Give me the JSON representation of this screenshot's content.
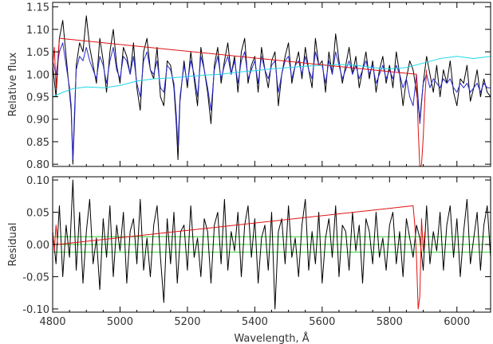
{
  "chart_data": [
    {
      "type": "line",
      "panel": "top",
      "xlabel": "",
      "ylabel": "Relative flux",
      "xlim": [
        4800,
        6100
      ],
      "ylim": [
        0.795,
        1.16
      ],
      "yticks": [
        "0.80",
        "0.85",
        "0.90",
        "0.95",
        "1.00",
        "1.05",
        "1.10",
        "1.15"
      ],
      "ytick_values": [
        0.8,
        0.85,
        0.9,
        0.95,
        1.0,
        1.05,
        1.1,
        1.15
      ],
      "xticks": [
        "4800",
        "5000",
        "5200",
        "5400",
        "5600",
        "5800",
        "6000"
      ],
      "xtick_values": [
        4800,
        5000,
        5200,
        5400,
        5600,
        5800,
        6000
      ],
      "show_xtick_labels": false,
      "series": [
        {
          "color": "#000000",
          "x": [
            4800,
            4810,
            4820,
            4830,
            4840,
            4850,
            4855,
            4860,
            4865,
            4870,
            4880,
            4890,
            4900,
            4910,
            4920,
            4930,
            4940,
            4950,
            4960,
            4970,
            4980,
            4990,
            5000,
            5010,
            5020,
            5030,
            5040,
            5050,
            5060,
            5070,
            5080,
            5090,
            5100,
            5110,
            5120,
            5130,
            5140,
            5150,
            5160,
            5167,
            5172,
            5178,
            5190,
            5200,
            5210,
            5220,
            5230,
            5240,
            5250,
            5260,
            5270,
            5280,
            5290,
            5300,
            5310,
            5320,
            5330,
            5340,
            5350,
            5360,
            5370,
            5380,
            5390,
            5400,
            5410,
            5420,
            5430,
            5440,
            5450,
            5460,
            5470,
            5480,
            5490,
            5500,
            5510,
            5520,
            5530,
            5540,
            5550,
            5560,
            5570,
            5580,
            5590,
            5600,
            5610,
            5620,
            5630,
            5640,
            5650,
            5660,
            5670,
            5680,
            5690,
            5700,
            5710,
            5720,
            5730,
            5740,
            5750,
            5760,
            5770,
            5780,
            5790,
            5800,
            5810,
            5820,
            5830,
            5840,
            5850,
            5860,
            5870,
            5880,
            5890,
            5900,
            5910,
            5920,
            5930,
            5940,
            5950,
            5960,
            5970,
            5980,
            5990,
            6000,
            6010,
            6020,
            6030,
            6040,
            6050,
            6060,
            6070,
            6080,
            6090,
            6100
          ],
          "y": [
            1.02,
            0.95,
            1.08,
            1.12,
            1.04,
            0.96,
            0.92,
            0.8,
            0.9,
            1.02,
            1.07,
            1.05,
            1.13,
            1.06,
            1.02,
            0.98,
            1.08,
            1.03,
            0.96,
            1.05,
            1.1,
            1.02,
            0.98,
            1.06,
            1.04,
            1.0,
            1.07,
            0.97,
            0.92,
            1.05,
            1.08,
            1.01,
            0.99,
            1.06,
            0.95,
            0.93,
            1.03,
            1.02,
            0.97,
            0.89,
            0.81,
            0.94,
            1.03,
            0.97,
            1.05,
            0.99,
            0.93,
            1.06,
            1.01,
            0.96,
            0.89,
            1.02,
            1.06,
            0.98,
            1.03,
            1.07,
            1.0,
            1.04,
            0.96,
            1.05,
            1.08,
            0.98,
            1.02,
            1.04,
            0.96,
            1.06,
            1.01,
            0.97,
            1.03,
            1.05,
            0.93,
            1.0,
            1.04,
            1.07,
            0.98,
            1.02,
            1.05,
            0.99,
            1.06,
            1.01,
            0.97,
            1.08,
            1.02,
            1.03,
            0.96,
            1.05,
            1.0,
            1.09,
            1.03,
            0.98,
            1.02,
            1.06,
            1.0,
            1.04,
            0.97,
            1.01,
            1.05,
            0.99,
            1.03,
            0.96,
            1.01,
            1.04,
            0.98,
            1.02,
            0.97,
            1.05,
            1.0,
            0.93,
            0.99,
            1.03,
            1.01,
            0.96,
            0.9,
            0.98,
            1.04,
            1.0,
            0.96,
            1.02,
            0.95,
            1.01,
            0.98,
            1.03,
            0.96,
            0.93,
            0.99,
            0.98,
            1.02,
            0.94,
            0.97,
            1.01,
            0.95,
            0.99,
            0.96,
            0.95
          ]
        },
        {
          "color": "#2a2ad0",
          "x": [
            4800,
            4810,
            4820,
            4830,
            4840,
            4850,
            4855,
            4860,
            4865,
            4870,
            4880,
            4890,
            4900,
            4910,
            4920,
            4930,
            4940,
            4950,
            4960,
            4970,
            4980,
            4990,
            5000,
            5010,
            5020,
            5030,
            5040,
            5050,
            5060,
            5070,
            5080,
            5090,
            5100,
            5110,
            5120,
            5130,
            5140,
            5150,
            5160,
            5167,
            5172,
            5178,
            5190,
            5200,
            5210,
            5220,
            5230,
            5240,
            5250,
            5260,
            5270,
            5280,
            5290,
            5300,
            5310,
            5320,
            5330,
            5340,
            5350,
            5360,
            5370,
            5380,
            5390,
            5400,
            5410,
            5420,
            5430,
            5440,
            5450,
            5460,
            5470,
            5480,
            5490,
            5500,
            5510,
            5520,
            5530,
            5540,
            5550,
            5560,
            5570,
            5580,
            5590,
            5600,
            5610,
            5620,
            5630,
            5640,
            5650,
            5660,
            5670,
            5680,
            5690,
            5700,
            5710,
            5720,
            5730,
            5740,
            5750,
            5760,
            5770,
            5780,
            5790,
            5800,
            5810,
            5820,
            5830,
            5840,
            5850,
            5860,
            5870,
            5880,
            5890,
            5900,
            5910,
            5920,
            5930,
            5940,
            5950,
            5960,
            5970,
            5980,
            5990,
            6000,
            6010,
            6020,
            6030,
            6040,
            6050,
            6060,
            6070,
            6080,
            6090,
            6100
          ],
          "y": [
            1.03,
            1.0,
            1.05,
            1.07,
            1.02,
            0.97,
            0.93,
            0.81,
            0.92,
            1.01,
            1.04,
            1.03,
            1.06,
            1.03,
            1.01,
            0.99,
            1.04,
            1.02,
            0.98,
            1.03,
            1.06,
            1.01,
            0.99,
            1.04,
            1.03,
            1.0,
            1.04,
            0.98,
            0.95,
            1.03,
            1.05,
            1.01,
            1.0,
            1.03,
            0.97,
            0.96,
            1.02,
            1.01,
            0.98,
            0.91,
            0.84,
            0.95,
            1.02,
            0.98,
            1.03,
            1.0,
            0.95,
            1.04,
            1.01,
            0.97,
            0.92,
            1.01,
            1.04,
            0.99,
            1.02,
            1.04,
            1.0,
            1.03,
            0.98,
            1.03,
            1.05,
            0.99,
            1.01,
            1.03,
            0.98,
            1.04,
            1.01,
            0.99,
            1.02,
            1.03,
            0.96,
            1.0,
            1.03,
            1.04,
            0.99,
            1.02,
            1.03,
            1.0,
            1.04,
            1.01,
            0.99,
            1.05,
            1.02,
            1.02,
            0.98,
            1.03,
            1.0,
            1.05,
            1.02,
            0.99,
            1.01,
            1.03,
            1.0,
            1.02,
            0.99,
            1.01,
            1.03,
            1.0,
            1.02,
            0.98,
            1.0,
            1.02,
            0.99,
            1.01,
            0.99,
            1.02,
            1.0,
            0.97,
            0.99,
            0.95,
            0.93,
            1.0,
            0.89,
            0.98,
            1.0,
            0.97,
            0.99,
            0.98,
            0.97,
            0.99,
            0.98,
            0.99,
            0.97,
            0.96,
            0.98,
            0.97,
            0.98,
            0.96,
            0.97,
            0.98,
            0.96,
            0.98,
            0.97,
            0.97
          ]
        },
        {
          "color": "#20d8e8",
          "x": [
            4800,
            4830,
            4860,
            4900,
            4950,
            5000,
            5050,
            5100,
            5150,
            5200,
            5250,
            5300,
            5350,
            5400,
            5450,
            5500,
            5550,
            5600,
            5650,
            5700,
            5750,
            5800,
            5850,
            5900,
            5950,
            6000,
            6050,
            6100
          ],
          "y": [
            0.95,
            0.96,
            0.968,
            0.972,
            0.97,
            0.975,
            0.985,
            0.99,
            0.992,
            0.995,
            0.998,
            1.0,
            1.005,
            1.008,
            1.012,
            1.015,
            1.018,
            1.02,
            1.022,
            1.02,
            1.015,
            1.012,
            1.015,
            1.025,
            1.035,
            1.04,
            1.035,
            1.04
          ]
        },
        {
          "color": "#e01010",
          "x": [
            4800,
            4805,
            4810,
            4815,
            4820,
            5880,
            5885,
            5890,
            5895,
            5900,
            5905,
            5910
          ],
          "y": [
            1.02,
            1.06,
            0.97,
            1.03,
            1.08,
            1.0,
            0.88,
            0.79,
            0.8,
            0.86,
            0.95,
            1.01
          ]
        }
      ]
    },
    {
      "type": "line",
      "panel": "bottom",
      "xlabel": "Wavelength, Å",
      "ylabel": "Residual",
      "xlim": [
        4800,
        6100
      ],
      "ylim": [
        -0.105,
        0.105
      ],
      "yticks": [
        "-0.10",
        "-0.05",
        "0.00",
        "0.05",
        "0.10"
      ],
      "ytick_values": [
        -0.1,
        -0.05,
        0.0,
        0.05,
        0.1
      ],
      "xticks": [
        "4800",
        "5000",
        "5200",
        "5400",
        "5600",
        "5800",
        "6000"
      ],
      "xtick_values": [
        4800,
        5000,
        5200,
        5400,
        5600,
        5800,
        6000
      ],
      "show_xtick_labels": true,
      "reference_lines": {
        "color": "#30d030",
        "y": [
          0.012,
          0.0,
          -0.012
        ]
      },
      "series": [
        {
          "color": "#000000",
          "x": [
            4800,
            4810,
            4820,
            4830,
            4840,
            4850,
            4860,
            4870,
            4880,
            4890,
            4900,
            4910,
            4920,
            4930,
            4940,
            4950,
            4960,
            4970,
            4980,
            4990,
            5000,
            5010,
            5020,
            5030,
            5040,
            5050,
            5060,
            5070,
            5080,
            5090,
            5100,
            5110,
            5120,
            5130,
            5140,
            5150,
            5160,
            5170,
            5180,
            5190,
            5200,
            5210,
            5220,
            5230,
            5240,
            5250,
            5260,
            5270,
            5280,
            5290,
            5300,
            5310,
            5320,
            5330,
            5340,
            5350,
            5360,
            5370,
            5380,
            5390,
            5400,
            5410,
            5420,
            5430,
            5440,
            5450,
            5460,
            5470,
            5480,
            5490,
            5500,
            5510,
            5520,
            5530,
            5540,
            5550,
            5560,
            5570,
            5580,
            5590,
            5600,
            5610,
            5620,
            5630,
            5640,
            5650,
            5660,
            5670,
            5680,
            5690,
            5700,
            5710,
            5720,
            5730,
            5740,
            5750,
            5760,
            5770,
            5780,
            5790,
            5800,
            5810,
            5820,
            5830,
            5840,
            5850,
            5860,
            5870,
            5880,
            5890,
            5900,
            5910,
            5920,
            5930,
            5940,
            5950,
            5960,
            5970,
            5980,
            5990,
            6000,
            6010,
            6020,
            6030,
            6040,
            6050,
            6060,
            6070,
            6080,
            6090,
            6100
          ],
          "y": [
            0.02,
            -0.03,
            0.06,
            -0.05,
            0.03,
            -0.02,
            0.1,
            -0.04,
            0.05,
            -0.06,
            0.02,
            0.07,
            -0.03,
            0.01,
            -0.07,
            0.04,
            -0.02,
            0.06,
            -0.05,
            0.03,
            -0.01,
            0.05,
            -0.06,
            0.02,
            0.04,
            -0.03,
            0.07,
            -0.04,
            0.01,
            -0.05,
            0.03,
            0.06,
            -0.02,
            -0.09,
            0.04,
            -0.03,
            0.05,
            -0.06,
            0.02,
            0.03,
            -0.04,
            0.06,
            -0.02,
            0.01,
            -0.05,
            0.04,
            0.02,
            -0.06,
            0.03,
            0.05,
            -0.03,
            0.07,
            -0.04,
            0.02,
            -0.01,
            0.05,
            -0.05,
            0.03,
            0.06,
            -0.02,
            0.04,
            -0.06,
            0.01,
            0.03,
            -0.04,
            0.05,
            -0.1,
            0.02,
            0.04,
            -0.03,
            0.06,
            -0.02,
            0.01,
            -0.05,
            0.03,
            0.07,
            -0.04,
            0.02,
            -0.03,
            0.05,
            -0.06,
            0.01,
            0.04,
            -0.02,
            0.06,
            -0.05,
            0.03,
            0.02,
            -0.04,
            0.05,
            -0.01,
            0.03,
            -0.06,
            0.04,
            0.02,
            -0.03,
            0.05,
            -0.02,
            0.01,
            -0.04,
            0.03,
            0.05,
            -0.03,
            0.02,
            -0.05,
            0.04,
            0.01,
            -0.02,
            0.03,
            0.01,
            -0.04,
            0.06,
            -0.03,
            0.02,
            -0.01,
            0.05,
            -0.04,
            0.03,
            0.06,
            -0.02,
            0.04,
            -0.05,
            0.02,
            0.07,
            -0.03,
            0.01,
            0.05,
            -0.04,
            0.03,
            0.06,
            -0.02
          ]
        },
        {
          "color": "#e01010",
          "x": [
            4800,
            4805,
            4810,
            4815,
            5870,
            5875,
            5880,
            5885,
            5890,
            5895,
            5900,
            5905
          ],
          "y": [
            0.02,
            -0.01,
            0.03,
            0.0,
            0.06,
            0.03,
            -0.02,
            -0.1,
            -0.08,
            0.04,
            -0.01,
            0.02
          ]
        }
      ]
    }
  ]
}
